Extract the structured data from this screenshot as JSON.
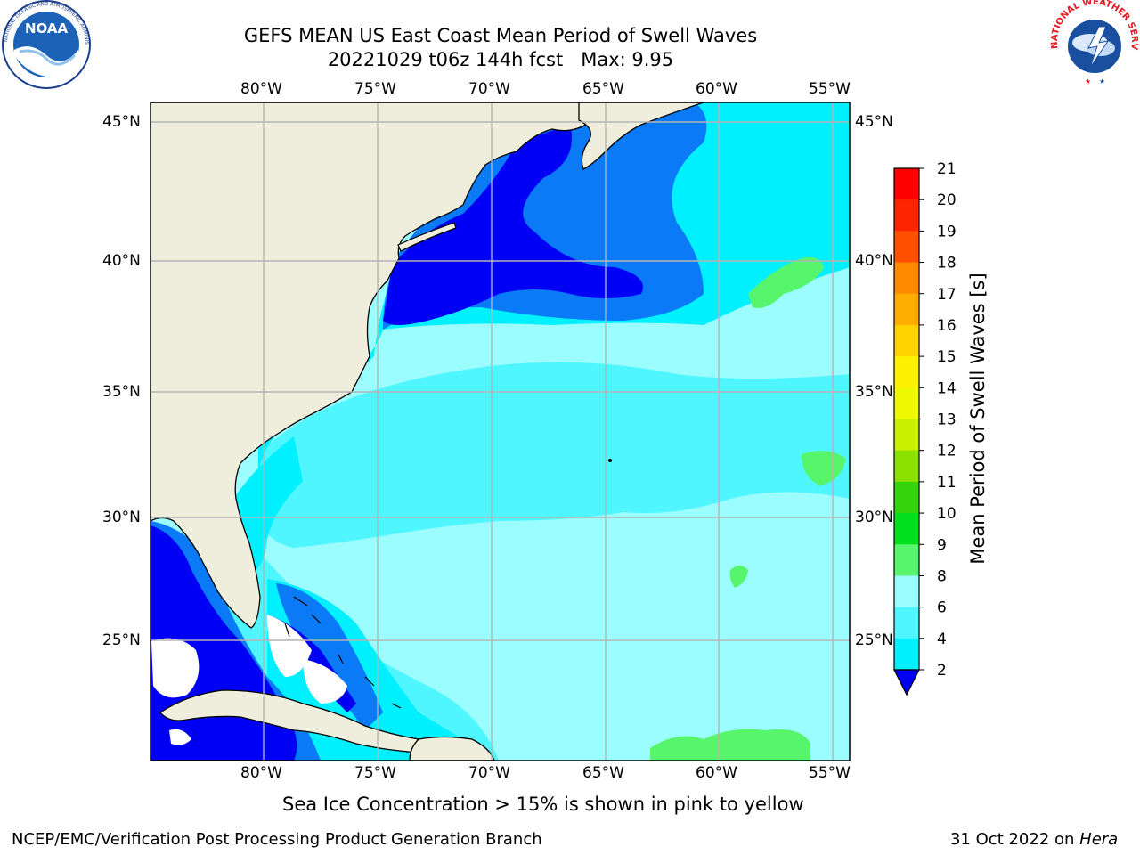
{
  "header": {
    "title_line1": "GEFS MEAN US East Coast Mean Period of Swell Waves",
    "title_line2": "20221029 t06z 144h fcst   Max: 9.95"
  },
  "logos": {
    "left": {
      "name": "noaa-logo",
      "text": "NOAA",
      "ring_text": "NATIONAL OCEANIC AND ATMOSPHERIC ADMINISTRATION · U.S. DEPARTMENT OF COMMERCE"
    },
    "right": {
      "name": "nws-logo",
      "ring_text": "NATIONAL WEATHER SERVICE"
    }
  },
  "map": {
    "lon_ticks": [
      "80°W",
      "75°W",
      "70°W",
      "65°W",
      "60°W",
      "55°W"
    ],
    "lat_ticks": [
      "45°N",
      "40°N",
      "35°N",
      "30°N",
      "25°N"
    ],
    "colors": {
      "land": "#efeedc",
      "grid": "#b4b4b4",
      "ice": "#ffffff"
    }
  },
  "colorbar": {
    "label": "Mean Period of Swell Waves [s]",
    "ticks": [
      "2",
      "4",
      "6",
      "8",
      "9",
      "10",
      "11",
      "12",
      "13",
      "14",
      "15",
      "16",
      "17",
      "18",
      "19",
      "20",
      "21"
    ],
    "colors": [
      "#0000f5",
      "#0a7af7",
      "#00f0ff",
      "#4ff5ff",
      "#9cfdff",
      "#57f56b",
      "#00e01c",
      "#35d40a",
      "#8ce000",
      "#c8f000",
      "#eef800",
      "#fff200",
      "#ffd200",
      "#ffae00",
      "#ff8a00",
      "#ff5000",
      "#ff2400",
      "#ff0000"
    ],
    "extend_color": "#0000f5"
  },
  "footer": {
    "note": "Sea Ice Concentration > 15% is shown in pink to yellow",
    "credit": "NCEP/EMC/Verification Post Processing Product Generation Branch",
    "date": "31 Oct 2022 on ",
    "host": "Hera"
  }
}
